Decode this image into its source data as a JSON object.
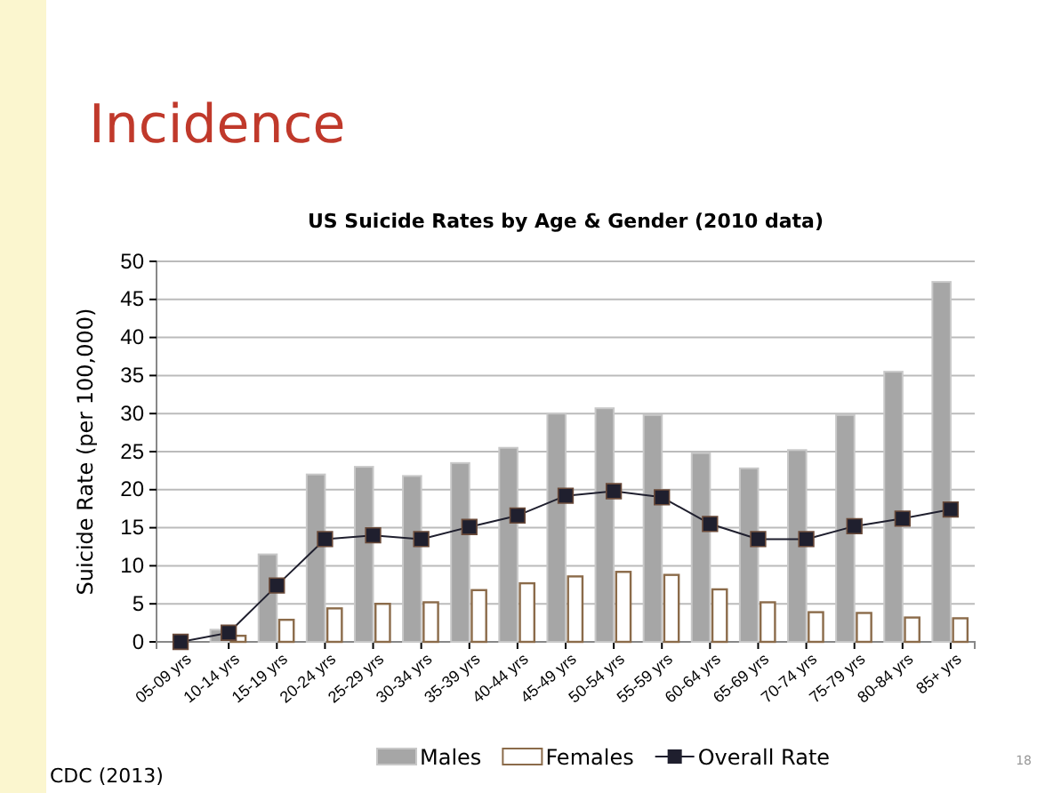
{
  "chart_data": {
    "type": "bar",
    "title": "Incidence",
    "subtitle": "US Suicide Rates by Age & Gender (2010 data)",
    "ylabel": "Suicide Rate (per 100,000)",
    "categories": [
      "05-09 yrs",
      "10-14 yrs",
      "15-19 yrs",
      "20-24 yrs",
      "25-29 yrs",
      "30-34 yrs",
      "35-39 yrs",
      "40-44 yrs",
      "45-49 yrs",
      "50-54 yrs",
      "55-59 yrs",
      "60-64 yrs",
      "65-69 yrs",
      "70-74 yrs",
      "75-79 yrs",
      "80-84 yrs",
      "85+ yrs"
    ],
    "series": [
      {
        "name": "Males",
        "color": "#a6a6a6",
        "values": [
          null,
          1.6,
          11.5,
          22,
          23,
          21.8,
          23.5,
          25.5,
          30,
          30.7,
          29.8,
          24.8,
          22.8,
          25.2,
          29.8,
          35.5,
          47.3
        ]
      },
      {
        "name": "Females",
        "color": "#ffffff",
        "values": [
          0,
          0.8,
          2.9,
          4.4,
          5,
          5.2,
          6.8,
          7.7,
          8.6,
          9.2,
          8.8,
          6.9,
          5.2,
          3.9,
          3.8,
          3.2,
          3.1
        ]
      },
      {
        "name": "Overall Rate",
        "type": "line",
        "color": "#1f1f2e",
        "marker": "square",
        "values": [
          0,
          1.2,
          7.4,
          13.5,
          14,
          13.5,
          15.1,
          16.6,
          19.2,
          19.8,
          19,
          15.5,
          13.5,
          13.5,
          15.2,
          16.2,
          17.4
        ]
      }
    ],
    "ylim": [
      0,
      50
    ],
    "yticks": [
      0,
      5,
      10,
      15,
      20,
      25,
      30,
      35,
      40,
      45,
      50
    ],
    "grid": "y",
    "legend": "bottom",
    "annotations": [
      "CDC (2013)",
      "18"
    ]
  }
}
